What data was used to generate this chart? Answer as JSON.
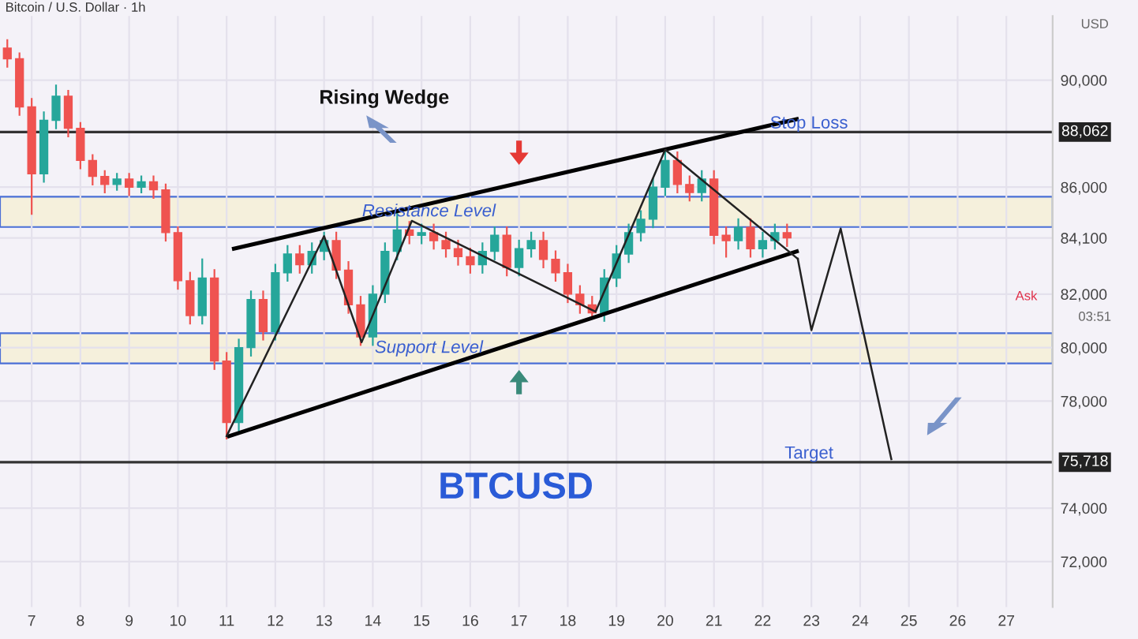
{
  "chart_data": {
    "type": "candlestick",
    "title": "Bitcoin / U.S. Dollar · 1h",
    "x": [
      6.5,
      6.75,
      7.0,
      7.25,
      7.5,
      7.75,
      8.0,
      8.25,
      8.5,
      8.75,
      9.0,
      9.25,
      9.5,
      9.75,
      10.0,
      10.25,
      10.5,
      10.75,
      11.0,
      11.25,
      11.5,
      11.75,
      12.0,
      12.25,
      12.5,
      12.75,
      13.0,
      13.25,
      13.5,
      13.75,
      14.0,
      14.25,
      14.5,
      14.75,
      15.0,
      15.25,
      15.5,
      15.75,
      16.0,
      16.25,
      16.5,
      16.75,
      17.0,
      17.25,
      17.5,
      17.75,
      18.0,
      18.25,
      18.5,
      18.75,
      19.0,
      19.25,
      19.5,
      19.75,
      20.0,
      20.25,
      20.5,
      20.75,
      21.0,
      21.25,
      21.5,
      21.75,
      22.0,
      22.25,
      22.5
    ],
    "ohlc": [
      [
        91200,
        91500,
        90500,
        90800
      ],
      [
        90800,
        91000,
        88700,
        89000
      ],
      [
        89000,
        89300,
        85000,
        86500
      ],
      [
        86500,
        88800,
        86200,
        88500
      ],
      [
        88500,
        89800,
        88200,
        89400
      ],
      [
        89400,
        89600,
        87900,
        88200
      ],
      [
        88200,
        88400,
        86700,
        87000
      ],
      [
        87000,
        87200,
        86100,
        86400
      ],
      [
        86400,
        86600,
        85800,
        86100
      ],
      [
        86100,
        86500,
        85900,
        86300
      ],
      [
        86300,
        86500,
        85700,
        86000
      ],
      [
        86000,
        86400,
        85800,
        86200
      ],
      [
        86200,
        86400,
        85600,
        85900
      ],
      [
        85900,
        86100,
        84000,
        84300
      ],
      [
        84300,
        84500,
        82200,
        82500
      ],
      [
        82500,
        82800,
        80900,
        81200
      ],
      [
        81200,
        83300,
        80900,
        82600
      ],
      [
        82600,
        82900,
        79200,
        79500
      ],
      [
        79500,
        79800,
        76600,
        77200
      ],
      [
        77200,
        80300,
        76900,
        80000
      ],
      [
        80000,
        82100,
        79700,
        81800
      ],
      [
        81800,
        82100,
        80300,
        80600
      ],
      [
        80600,
        83100,
        80300,
        82800
      ],
      [
        82800,
        83800,
        82500,
        83500
      ],
      [
        83500,
        83800,
        82800,
        83100
      ],
      [
        83100,
        83900,
        82800,
        83600
      ],
      [
        83600,
        84300,
        83300,
        84000
      ],
      [
        84000,
        84300,
        82600,
        82900
      ],
      [
        82900,
        83200,
        81300,
        81600
      ],
      [
        81600,
        81900,
        80100,
        80400
      ],
      [
        80400,
        82300,
        80100,
        82000
      ],
      [
        82000,
        83900,
        81700,
        83600
      ],
      [
        83600,
        85000,
        83300,
        84400
      ],
      [
        84400,
        84700,
        83900,
        84200
      ],
      [
        84200,
        84600,
        83900,
        84300
      ],
      [
        84300,
        84600,
        83700,
        84000
      ],
      [
        84000,
        84300,
        83400,
        83700
      ],
      [
        83700,
        84000,
        83100,
        83400
      ],
      [
        83400,
        83700,
        82800,
        83100
      ],
      [
        83100,
        83900,
        82800,
        83600
      ],
      [
        83600,
        84500,
        83300,
        84200
      ],
      [
        84200,
        84500,
        82700,
        83000
      ],
      [
        83000,
        84000,
        82700,
        83700
      ],
      [
        83700,
        84300,
        83400,
        84000
      ],
      [
        84000,
        84300,
        83000,
        83300
      ],
      [
        83300,
        83600,
        82500,
        82800
      ],
      [
        82800,
        83100,
        81700,
        82000
      ],
      [
        82000,
        82300,
        81300,
        81600
      ],
      [
        81600,
        81900,
        81100,
        81300
      ],
      [
        81300,
        82900,
        81000,
        82600
      ],
      [
        82600,
        83800,
        82300,
        83500
      ],
      [
        83500,
        84600,
        83200,
        84300
      ],
      [
        84300,
        85100,
        84000,
        84800
      ],
      [
        84800,
        86300,
        84500,
        86000
      ],
      [
        86000,
        87400,
        85700,
        87000
      ],
      [
        87000,
        87300,
        85800,
        86100
      ],
      [
        86100,
        86400,
        85500,
        85800
      ],
      [
        85800,
        86600,
        85500,
        86300
      ],
      [
        86300,
        86600,
        83900,
        84200
      ],
      [
        84200,
        84500,
        83400,
        84000
      ],
      [
        84000,
        84800,
        83700,
        84500
      ],
      [
        84500,
        84800,
        83400,
        83700
      ],
      [
        83700,
        84300,
        83400,
        84000
      ],
      [
        84000,
        84600,
        83700,
        84300
      ],
      [
        84300,
        84600,
        83800,
        84100
      ]
    ],
    "series": [
      {
        "type": "line",
        "color": "#000000",
        "x": [
          11.15,
          22.7
        ],
        "values": [
          83700,
          88540
        ]
      },
      {
        "type": "line",
        "color": "#000000",
        "x": [
          11.05,
          22.7
        ],
        "values": [
          76690,
          83600
        ]
      },
      {
        "type": "line",
        "color": "#222222",
        "x": [
          11.0,
          13.0,
          13.77,
          14.8,
          18.57,
          20.0,
          22.72
        ],
        "values": [
          76690,
          84170,
          80200,
          84740,
          81340,
          87400,
          83320
        ]
      },
      {
        "type": "line",
        "color": "#222222",
        "x": [
          22.72,
          23.0,
          23.6,
          24.64
        ],
        "values": [
          83320,
          80650,
          84450,
          75830
        ]
      }
    ],
    "bands": [
      {
        "axis": "y",
        "from": 84510,
        "to": 85640,
        "label": "Resistance Level",
        "color": "#f5f0dc"
      },
      {
        "axis": "y",
        "from": 79410,
        "to": 80540,
        "label": "Support Level",
        "color": "#f5f0dc"
      }
    ],
    "ref_lines": [
      {
        "axis": "y",
        "value": 88062,
        "label": "Stop Loss",
        "color": "#333333"
      },
      {
        "axis": "y",
        "value": 75718,
        "label": "Target",
        "color": "#333333"
      }
    ],
    "annotations": [
      "Rising Wedge",
      "BTCUSD",
      "Ask",
      "03:51",
      "USD",
      {
        "text": "88,062",
        "x": 27.95,
        "y": 88062
      },
      {
        "text": "75,718",
        "x": 27.95,
        "y": 75718
      }
    ],
    "xlim": [
      6.35,
      27.95
    ],
    "ylim": [
      70300,
      92400
    ],
    "xticks": [
      7,
      8,
      9,
      10,
      11,
      12,
      13,
      14,
      15,
      16,
      17,
      18,
      19,
      20,
      21,
      22,
      23,
      24,
      25,
      26,
      27
    ],
    "yticks": [
      {
        "value": 72000,
        "label": "72,000"
      },
      {
        "value": 74000,
        "label": "74,000"
      },
      {
        "value": 78000,
        "label": "78,000"
      },
      {
        "value": 80000,
        "label": "80,000"
      },
      {
        "value": 82000,
        "label": "82,000"
      },
      {
        "value": 84100,
        "label": "84,100"
      },
      {
        "value": 86000,
        "label": "86,000"
      },
      {
        "value": 90000,
        "label": "90,000"
      }
    ],
    "grid": true
  }
}
